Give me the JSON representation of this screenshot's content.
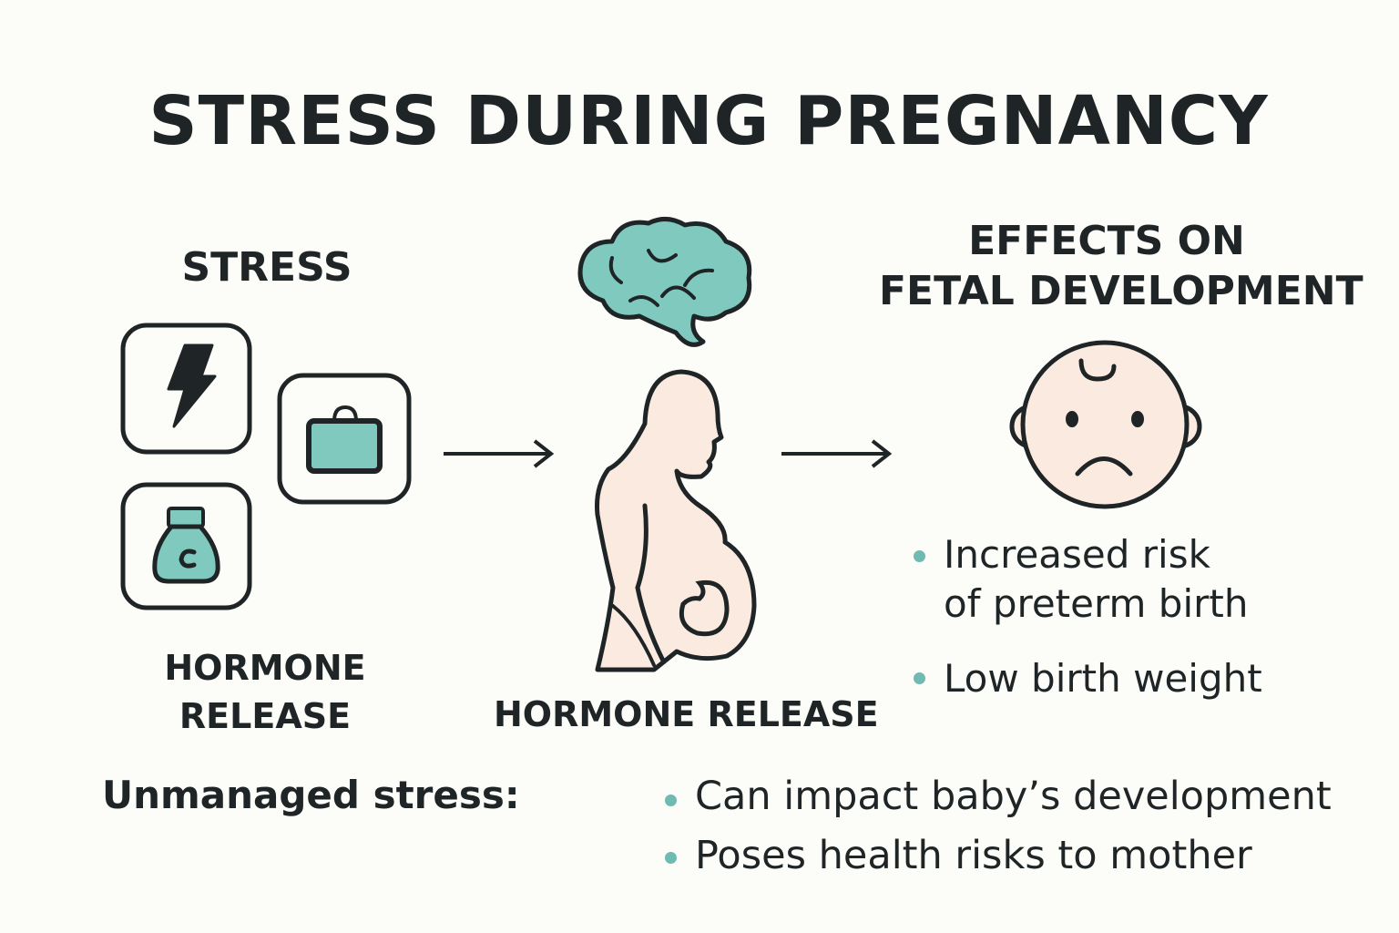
{
  "title": "STRESS DURING PREGNANCY",
  "stress": {
    "heading": "STRESS",
    "icons": [
      "lightning-bolt-icon",
      "briefcase-icon",
      "money-bag-icon"
    ],
    "caption_line1": "HORMONE",
    "caption_line2": "RELEASE"
  },
  "center": {
    "icons": [
      "brain-icon",
      "pregnant-woman-icon"
    ],
    "caption": "HORMONE RELEASE"
  },
  "effects": {
    "heading_line1": "EFFECTS ON",
    "heading_line2": "FETAL DEVELOPMENT",
    "icon": "sad-baby-face-icon",
    "bullets": [
      {
        "line1": "Increased risk",
        "line2": "of preterm birth"
      },
      {
        "line1": "Low birth weight"
      }
    ]
  },
  "footer": {
    "label": "Unmanaged stress:",
    "bullets": [
      "Can impact baby’s development",
      "Poses health risks to mother"
    ]
  },
  "colors": {
    "accent": "#7fc9bf",
    "skin": "#fbeadf",
    "ink": "#1f2526",
    "background": "#fcfcf8"
  }
}
